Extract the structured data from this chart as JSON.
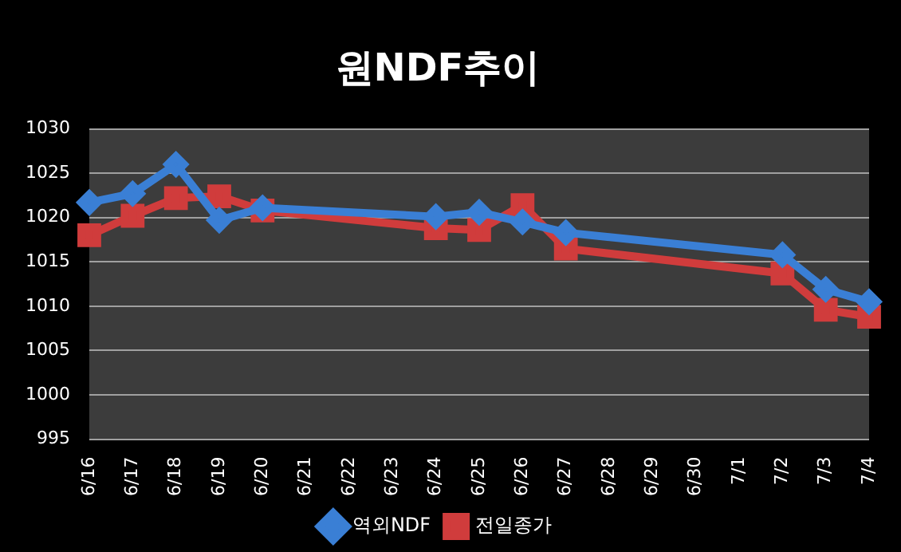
{
  "chart_data": {
    "type": "line",
    "title": "원NDF추이",
    "categories": [
      "6/16",
      "6/17",
      "6/18",
      "6/19",
      "6/20",
      "6/21",
      "6/22",
      "6/23",
      "6/24",
      "6/25",
      "6/26",
      "6/27",
      "6/28",
      "6/29",
      "6/30",
      "7/1",
      "7/2",
      "7/3",
      "7/4"
    ],
    "series": [
      {
        "name": "역외NDF",
        "color": "#3a7fd5",
        "marker": "diamond",
        "values": [
          1021.7,
          1022.7,
          1026,
          1019.7,
          1021.1,
          null,
          null,
          null,
          1020.1,
          1020.6,
          1019.5,
          1018.3,
          null,
          null,
          null,
          null,
          1015.8,
          1011.9,
          1010.5
        ]
      },
      {
        "name": "전일종가",
        "color": "#d03c3c",
        "marker": "square",
        "values": [
          1018,
          1020.2,
          1022.2,
          1022.4,
          1020.8,
          null,
          null,
          null,
          1018.8,
          1018.6,
          1021.4,
          1016.5,
          null,
          null,
          null,
          null,
          1013.7,
          1009.6,
          1008.8
        ]
      }
    ],
    "ylim": [
      995,
      1030
    ],
    "yticks": [
      995,
      1000,
      1005,
      1010,
      1015,
      1020,
      1025,
      1030
    ],
    "grid": "y",
    "legend": "bottom",
    "line_style": "solid"
  }
}
